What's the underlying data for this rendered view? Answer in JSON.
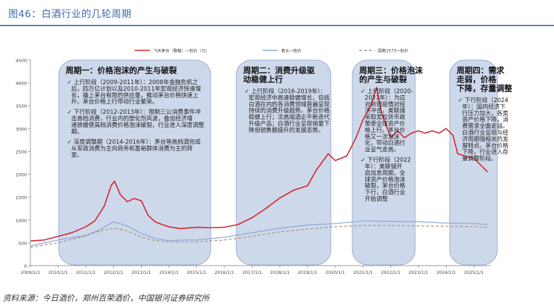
{
  "header": {
    "title": "图46：白酒行业的几轮周期"
  },
  "footer": {
    "source": "资料来源：今日酒价，郑州百荣酒价，中国银河证券研究所"
  },
  "colors": {
    "feitian": "#d61f26",
    "wuliangye": "#8fa9d3",
    "guojiao": "#a89578",
    "bubble_fill": "#c3d0e6",
    "bubble_stroke": "#8aa2cb",
    "accent": "#3a6ab0"
  },
  "chart_data": {
    "type": "line",
    "xlim": [
      "2009-01-01",
      "2025-12-31"
    ],
    "ylim": [
      0,
      4500
    ],
    "x_ticks": [
      "2009/1/1",
      "2010/1/1",
      "2011/1/1",
      "2012/1/1",
      "2013/1/1",
      "2014/1/1",
      "2015/1/1",
      "2016/1/1",
      "2017/1/1",
      "2018/1/1",
      "2019/1/1",
      "2020/1/1",
      "2021/1/1",
      "2022/1/1",
      "2023/1/1",
      "2024/1/1",
      "2025/1/1"
    ],
    "y_ticks": [
      0,
      500,
      1000,
      1500,
      2000,
      2500,
      3000,
      3500,
      4000,
      4500
    ],
    "legend": [
      "飞天茅台（整箱）一批价（元）",
      "普五一批价",
      "国窖1573一批价"
    ],
    "series": [
      {
        "name": "飞天茅台（整箱）一批价（元）",
        "style": "solid",
        "color": "#d61f26",
        "points": [
          [
            "2009-01-01",
            540
          ],
          [
            "2009-07-01",
            560
          ],
          [
            "2010-01-01",
            640
          ],
          [
            "2010-07-01",
            720
          ],
          [
            "2011-01-01",
            850
          ],
          [
            "2011-05-01",
            980
          ],
          [
            "2011-09-01",
            1300
          ],
          [
            "2011-12-01",
            1750
          ],
          [
            "2012-01-15",
            1850
          ],
          [
            "2012-04-01",
            1550
          ],
          [
            "2012-07-01",
            1400
          ],
          [
            "2012-10-01",
            1470
          ],
          [
            "2013-01-01",
            1420
          ],
          [
            "2013-04-01",
            1100
          ],
          [
            "2013-07-01",
            960
          ],
          [
            "2013-10-01",
            900
          ],
          [
            "2014-01-01",
            850
          ],
          [
            "2014-06-01",
            810
          ],
          [
            "2015-01-01",
            840
          ],
          [
            "2015-07-01",
            830
          ],
          [
            "2016-01-01",
            840
          ],
          [
            "2016-07-01",
            900
          ],
          [
            "2017-01-01",
            1050
          ],
          [
            "2017-07-01",
            1250
          ],
          [
            "2018-01-01",
            1480
          ],
          [
            "2018-07-01",
            1650
          ],
          [
            "2019-01-01",
            1750
          ],
          [
            "2019-05-01",
            2100
          ],
          [
            "2019-10-01",
            2450
          ],
          [
            "2020-01-01",
            2300
          ],
          [
            "2020-06-01",
            2400
          ],
          [
            "2020-10-01",
            2800
          ],
          [
            "2021-01-01",
            3200
          ],
          [
            "2021-04-01",
            3450
          ],
          [
            "2021-07-01",
            3900
          ],
          [
            "2021-09-01",
            3350
          ],
          [
            "2022-01-01",
            2800
          ],
          [
            "2022-04-01",
            2950
          ],
          [
            "2022-07-01",
            2800
          ],
          [
            "2022-10-01",
            2900
          ],
          [
            "2023-01-01",
            2950
          ],
          [
            "2023-04-01",
            2900
          ],
          [
            "2023-07-01",
            2950
          ],
          [
            "2023-10-01",
            2900
          ],
          [
            "2024-01-01",
            3000
          ],
          [
            "2024-04-01",
            2850
          ],
          [
            "2024-06-01",
            2450
          ],
          [
            "2024-09-01",
            2400
          ],
          [
            "2025-01-01",
            2350
          ],
          [
            "2025-05-01",
            2150
          ],
          [
            "2025-07-01",
            2050
          ]
        ]
      },
      {
        "name": "普五一批价",
        "style": "solid",
        "color": "#8fa9d3",
        "points": [
          [
            "2009-01-01",
            430
          ],
          [
            "2010-01-01",
            560
          ],
          [
            "2011-01-01",
            660
          ],
          [
            "2011-07-01",
            780
          ],
          [
            "2012-01-01",
            960
          ],
          [
            "2012-07-01",
            870
          ],
          [
            "2013-01-01",
            700
          ],
          [
            "2013-07-01",
            600
          ],
          [
            "2014-01-01",
            540
          ],
          [
            "2014-07-01",
            560
          ],
          [
            "2015-01-01",
            560
          ],
          [
            "2016-01-01",
            620
          ],
          [
            "2017-01-01",
            720
          ],
          [
            "2018-01-01",
            820
          ],
          [
            "2019-01-01",
            890
          ],
          [
            "2020-01-01",
            920
          ],
          [
            "2021-01-01",
            980
          ],
          [
            "2022-01-01",
            970
          ],
          [
            "2023-01-01",
            960
          ],
          [
            "2024-01-01",
            930
          ],
          [
            "2025-01-01",
            920
          ],
          [
            "2025-07-01",
            900
          ]
        ]
      },
      {
        "name": "国窖1573一批价",
        "style": "dashed",
        "color": "#a89578",
        "points": [
          [
            "2009-01-01",
            400
          ],
          [
            "2010-01-01",
            500
          ],
          [
            "2011-01-01",
            650
          ],
          [
            "2011-07-01",
            760
          ],
          [
            "2012-01-01",
            820
          ],
          [
            "2012-07-01",
            760
          ],
          [
            "2013-01-01",
            620
          ],
          [
            "2013-07-01",
            550
          ],
          [
            "2014-01-01",
            520
          ],
          [
            "2015-01-01",
            520
          ],
          [
            "2016-01-01",
            560
          ],
          [
            "2017-01-01",
            640
          ],
          [
            "2018-01-01",
            740
          ],
          [
            "2019-01-01",
            800
          ],
          [
            "2020-01-01",
            850
          ],
          [
            "2021-01-01",
            880
          ],
          [
            "2022-01-01",
            880
          ],
          [
            "2023-01-01",
            870
          ],
          [
            "2024-01-01",
            860
          ],
          [
            "2025-01-01",
            850
          ],
          [
            "2025-07-01",
            840
          ]
        ]
      }
    ],
    "annotations": [
      {
        "title": "周期一：价格泡沫的产生与破裂",
        "lines": [
          "✓ 上行阶段（2009-2011年）：2008年金融危机之",
          "后，四万亿计划以及2010-2011年宏观经济快速增",
          "长，撬上茅台有限的供应量，推动茅台价格快速上",
          "升。茅台价格上行带动行业繁荣。",
          "",
          "✓ 下行阶段（2012-2013年）：限制三公消费事件冲",
          "击高档消费，行业内的塑化剂风波，叠加经济增",
          "速放缓使高档消费价格泡沫破裂，行业进入深度调整",
          "期。",
          "",
          "✓ 深度调整期（2014-2016年）：茅台等高档酒完成",
          "从军政消费为主向商务和富裕群体消费为主的转",
          "变。"
        ]
      },
      {
        "title": "周期二：消费升级驱动稳健上行",
        "lines": [
          "✓ 上行阶段（2016-2019年）：",
          "宏观经济中高速稳健增长，包括",
          "白酒在内的各消费领域普遍呈现",
          "持续的消费升级趋势。茅台价格",
          "稳健上行；次高端酒企不断迭代",
          "升级产品；白酒行业呈现销量下",
          "降但销售额提升的发展态势。"
        ]
      },
      {
        "title": "周期三：价格泡沫的产生与破裂",
        "lines": [
          "✓ 上行阶段（2020-",
          "2021年）：为应",
          "对新冠疫情对经",
          "济冲击，美联储",
          "采取宽松货币政",
          "策使全球资产价",
          "格上行。茅台价",
          "格又一次泡沫",
          "化，带动白酒行",
          "业呈气走高。",
          "",
          "✓ 下行阶段（2022",
          "年）：美联储开",
          "启加息周期，全",
          "球资产价格泡沫",
          "破裂，茅台价格",
          "下行，白酒行业",
          "开始调整"
        ]
      },
      {
        "title": "周期四：需求走弱，价格下降，存量调整",
        "lines": [
          "✓ 下行阶段（2024",
          "年）：国内经济下",
          "行压力加大，各类",
          "资产价格下降，消",
          "费需求全面走弱。",
          "白酒行业呈现与经",
          "济周期强相关的发",
          "展特点。茅台价格",
          "下降，行业进入存",
          "量调整阶段。"
        ]
      }
    ]
  }
}
